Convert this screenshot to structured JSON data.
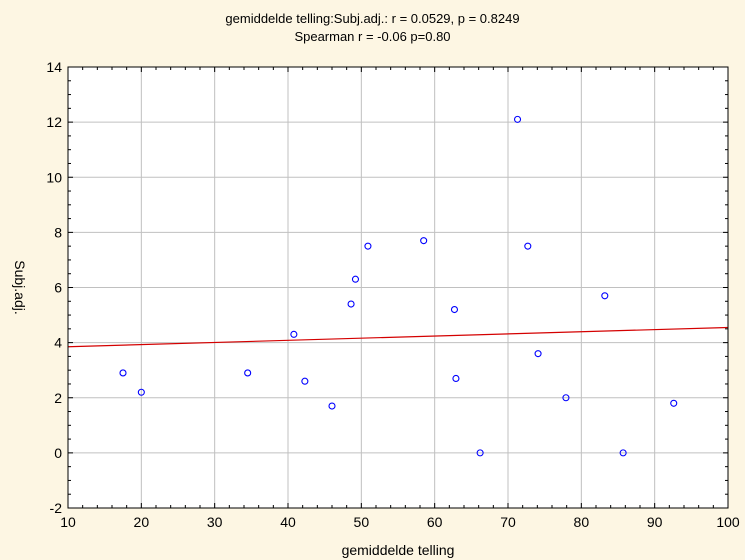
{
  "chart_data": {
    "type": "scatter",
    "title": "gemiddelde telling:Subj.adj.:    r = 0.0529, p = 0.8249",
    "subtitle": "Spearman r = -0.06 p=0.80",
    "xlabel": "gemiddelde telling",
    "ylabel": "Subj.adj.",
    "xlim": [
      10,
      100
    ],
    "ylim": [
      -2,
      14
    ],
    "x_ticks": [
      10,
      20,
      30,
      40,
      50,
      60,
      70,
      80,
      90,
      100
    ],
    "y_ticks": [
      -2,
      0,
      2,
      4,
      6,
      8,
      10,
      12,
      14
    ],
    "grid": true,
    "points": [
      {
        "x": 17.5,
        "y": 2.9
      },
      {
        "x": 20.0,
        "y": 2.2
      },
      {
        "x": 34.5,
        "y": 2.9
      },
      {
        "x": 40.8,
        "y": 4.3
      },
      {
        "x": 42.3,
        "y": 2.6
      },
      {
        "x": 46.0,
        "y": 1.7
      },
      {
        "x": 48.6,
        "y": 5.4
      },
      {
        "x": 49.2,
        "y": 6.3
      },
      {
        "x": 50.9,
        "y": 7.5
      },
      {
        "x": 58.5,
        "y": 7.7
      },
      {
        "x": 62.7,
        "y": 5.2
      },
      {
        "x": 62.9,
        "y": 2.7
      },
      {
        "x": 66.2,
        "y": 0.0
      },
      {
        "x": 71.3,
        "y": 12.1
      },
      {
        "x": 72.7,
        "y": 7.5
      },
      {
        "x": 74.1,
        "y": 3.6
      },
      {
        "x": 77.9,
        "y": 2.0
      },
      {
        "x": 83.2,
        "y": 5.7
      },
      {
        "x": 85.7,
        "y": 0.0
      },
      {
        "x": 92.6,
        "y": 1.8
      }
    ],
    "fit_line": {
      "x": [
        10,
        100
      ],
      "y": [
        3.85,
        4.55
      ]
    },
    "colors": {
      "background": "#fdf6e3",
      "plot_area": "#ffffff",
      "marker": "#0000ff",
      "fit_line": "#d40000",
      "grid": "#c0c0c0"
    }
  }
}
